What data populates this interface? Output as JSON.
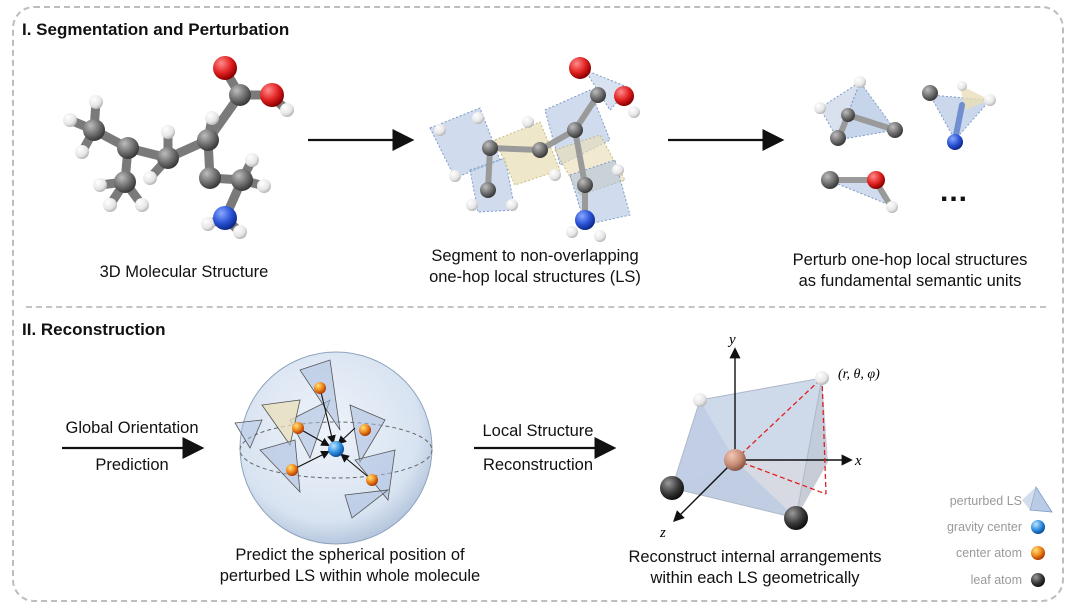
{
  "section1": {
    "title": "I. Segmentation and Perturbation",
    "caption_molecule": "3D Molecular Structure",
    "caption_segment": [
      "Segment to non-overlapping",
      "one-hop local structures (LS)"
    ],
    "caption_perturb": [
      "Perturb one-hop local structures",
      "as fundamental semantic units"
    ],
    "ellipsis": "..."
  },
  "section2": {
    "title": "II. Reconstruction",
    "arrow1_label": [
      "Global Orientation",
      "Prediction"
    ],
    "arrow2_label": [
      "Local Structure",
      "Reconstruction"
    ],
    "caption_sphere": [
      "Predict the spherical position of",
      "perturbed LS within whole molecule"
    ],
    "caption_reconstruct": [
      "Reconstruct internal arrangements",
      "within each LS geometrically"
    ],
    "axis_x": "x",
    "axis_y": "y",
    "axis_z": "z",
    "coord_label": "(r, θ, φ)"
  },
  "legend": {
    "items": [
      "perturbed LS",
      "gravity center",
      "center atom",
      "leaf atom"
    ]
  },
  "colors": {
    "carbon": "#6e6e6e",
    "oxygen": "#e02020",
    "nitrogen": "#2a52d6",
    "hydrogen": "#e8e8e8",
    "ls_blue": "#a9bedf",
    "ls_yellow": "#e9dfb8",
    "center_atom": "#c98e78",
    "gravity": "#2f8fe0",
    "sphere": "#dde7f3"
  }
}
